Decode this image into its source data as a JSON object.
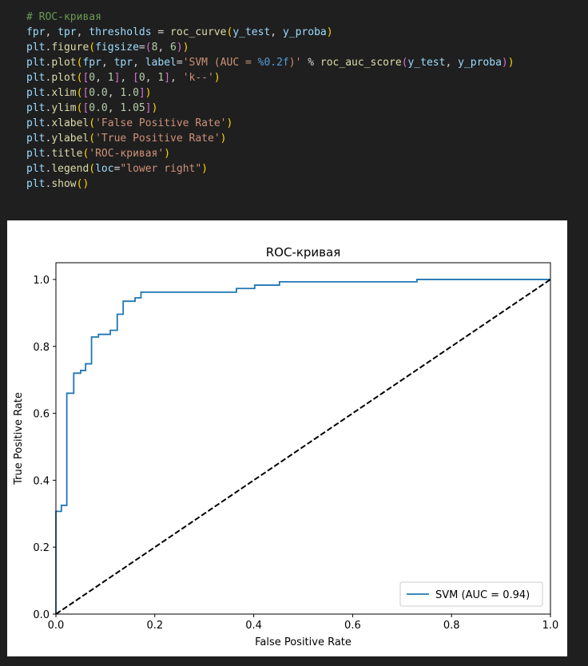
{
  "code_cell": {
    "lines": [
      [
        {
          "t": "# ROC-кривая",
          "c": "comment"
        }
      ],
      [
        {
          "t": "fpr",
          "c": "var"
        },
        {
          "t": ", ",
          "c": "op"
        },
        {
          "t": "tpr",
          "c": "var"
        },
        {
          "t": ", ",
          "c": "op"
        },
        {
          "t": "thresholds",
          "c": "var"
        },
        {
          "t": " = ",
          "c": "op"
        },
        {
          "t": "roc_curve",
          "c": "fn"
        },
        {
          "t": "(",
          "c": "br1"
        },
        {
          "t": "y_test",
          "c": "var"
        },
        {
          "t": ", ",
          "c": "op"
        },
        {
          "t": "y_proba",
          "c": "var"
        },
        {
          "t": ")",
          "c": "br1"
        }
      ],
      [
        {
          "t": "plt",
          "c": "var"
        },
        {
          "t": ".",
          "c": "op"
        },
        {
          "t": "figure",
          "c": "fn"
        },
        {
          "t": "(",
          "c": "br1"
        },
        {
          "t": "figsize",
          "c": "var"
        },
        {
          "t": "=",
          "c": "op"
        },
        {
          "t": "(",
          "c": "br2"
        },
        {
          "t": "8",
          "c": "num"
        },
        {
          "t": ", ",
          "c": "op"
        },
        {
          "t": "6",
          "c": "num"
        },
        {
          "t": ")",
          "c": "br2"
        },
        {
          "t": ")",
          "c": "br1"
        }
      ],
      [
        {
          "t": "plt",
          "c": "var"
        },
        {
          "t": ".",
          "c": "op"
        },
        {
          "t": "plot",
          "c": "fn"
        },
        {
          "t": "(",
          "c": "br1"
        },
        {
          "t": "fpr",
          "c": "var"
        },
        {
          "t": ", ",
          "c": "op"
        },
        {
          "t": "tpr",
          "c": "var"
        },
        {
          "t": ", ",
          "c": "op"
        },
        {
          "t": "label",
          "c": "var"
        },
        {
          "t": "=",
          "c": "op"
        },
        {
          "t": "'SVM (AUC = ",
          "c": "str"
        },
        {
          "t": "%0.2f",
          "c": "kw"
        },
        {
          "t": ")'",
          "c": "str"
        },
        {
          "t": " % ",
          "c": "op"
        },
        {
          "t": "roc_auc_score",
          "c": "fn"
        },
        {
          "t": "(",
          "c": "br2"
        },
        {
          "t": "y_test",
          "c": "var"
        },
        {
          "t": ", ",
          "c": "op"
        },
        {
          "t": "y_proba",
          "c": "var"
        },
        {
          "t": ")",
          "c": "br2"
        },
        {
          "t": ")",
          "c": "br1"
        }
      ],
      [
        {
          "t": "plt",
          "c": "var"
        },
        {
          "t": ".",
          "c": "op"
        },
        {
          "t": "plot",
          "c": "fn"
        },
        {
          "t": "(",
          "c": "br1"
        },
        {
          "t": "[",
          "c": "br2"
        },
        {
          "t": "0",
          "c": "num"
        },
        {
          "t": ", ",
          "c": "op"
        },
        {
          "t": "1",
          "c": "num"
        },
        {
          "t": "]",
          "c": "br2"
        },
        {
          "t": ", ",
          "c": "op"
        },
        {
          "t": "[",
          "c": "br2"
        },
        {
          "t": "0",
          "c": "num"
        },
        {
          "t": ", ",
          "c": "op"
        },
        {
          "t": "1",
          "c": "num"
        },
        {
          "t": "]",
          "c": "br2"
        },
        {
          "t": ", ",
          "c": "op"
        },
        {
          "t": "'k--'",
          "c": "str"
        },
        {
          "t": ")",
          "c": "br1"
        }
      ],
      [
        {
          "t": "plt",
          "c": "var"
        },
        {
          "t": ".",
          "c": "op"
        },
        {
          "t": "xlim",
          "c": "fn"
        },
        {
          "t": "(",
          "c": "br1"
        },
        {
          "t": "[",
          "c": "br2"
        },
        {
          "t": "0.0",
          "c": "num"
        },
        {
          "t": ", ",
          "c": "op"
        },
        {
          "t": "1.0",
          "c": "num"
        },
        {
          "t": "]",
          "c": "br2"
        },
        {
          "t": ")",
          "c": "br1"
        }
      ],
      [
        {
          "t": "plt",
          "c": "var"
        },
        {
          "t": ".",
          "c": "op"
        },
        {
          "t": "ylim",
          "c": "fn"
        },
        {
          "t": "(",
          "c": "br1"
        },
        {
          "t": "[",
          "c": "br2"
        },
        {
          "t": "0.0",
          "c": "num"
        },
        {
          "t": ", ",
          "c": "op"
        },
        {
          "t": "1.05",
          "c": "num"
        },
        {
          "t": "]",
          "c": "br2"
        },
        {
          "t": ")",
          "c": "br1"
        }
      ],
      [
        {
          "t": "plt",
          "c": "var"
        },
        {
          "t": ".",
          "c": "op"
        },
        {
          "t": "xlabel",
          "c": "fn"
        },
        {
          "t": "(",
          "c": "br1"
        },
        {
          "t": "'False Positive Rate'",
          "c": "str"
        },
        {
          "t": ")",
          "c": "br1"
        }
      ],
      [
        {
          "t": "plt",
          "c": "var"
        },
        {
          "t": ".",
          "c": "op"
        },
        {
          "t": "ylabel",
          "c": "fn"
        },
        {
          "t": "(",
          "c": "br1"
        },
        {
          "t": "'True Positive Rate'",
          "c": "str"
        },
        {
          "t": ")",
          "c": "br1"
        }
      ],
      [
        {
          "t": "plt",
          "c": "var"
        },
        {
          "t": ".",
          "c": "op"
        },
        {
          "t": "title",
          "c": "fn"
        },
        {
          "t": "(",
          "c": "br1"
        },
        {
          "t": "'ROC-кривая'",
          "c": "str"
        },
        {
          "t": ")",
          "c": "br1"
        }
      ],
      [
        {
          "t": "plt",
          "c": "var"
        },
        {
          "t": ".",
          "c": "op"
        },
        {
          "t": "legend",
          "c": "fn"
        },
        {
          "t": "(",
          "c": "br1"
        },
        {
          "t": "loc",
          "c": "var"
        },
        {
          "t": "=",
          "c": "op"
        },
        {
          "t": "\"lower right\"",
          "c": "str"
        },
        {
          "t": ")",
          "c": "br1"
        }
      ],
      [
        {
          "t": "plt",
          "c": "var"
        },
        {
          "t": ".",
          "c": "op"
        },
        {
          "t": "show",
          "c": "fn"
        },
        {
          "t": "()",
          "c": "br1"
        }
      ]
    ]
  },
  "chart_data": {
    "type": "line",
    "title": "ROC-кривая",
    "xlabel": "False Positive Rate",
    "ylabel": "True Positive Rate",
    "xlim": [
      0.0,
      1.0
    ],
    "ylim": [
      0.0,
      1.05
    ],
    "xticks": [
      "0.0",
      "0.2",
      "0.4",
      "0.6",
      "0.8",
      "1.0"
    ],
    "yticks": [
      "0.0",
      "0.2",
      "0.4",
      "0.6",
      "0.8",
      "1.0"
    ],
    "legend_position": "lower right",
    "grid": false,
    "series": [
      {
        "name": "SVM (AUC = 0.94)",
        "color": "#1f77b4",
        "style": "solid",
        "x": [
          0.0,
          0.0,
          0.011,
          0.011,
          0.022,
          0.022,
          0.036,
          0.036,
          0.05,
          0.05,
          0.06,
          0.06,
          0.072,
          0.072,
          0.086,
          0.086,
          0.11,
          0.11,
          0.124,
          0.124,
          0.136,
          0.136,
          0.16,
          0.16,
          0.172,
          0.172,
          0.365,
          0.365,
          0.402,
          0.402,
          0.452,
          0.452,
          0.73,
          0.73,
          1.0
        ],
        "y": [
          0.0,
          0.307,
          0.307,
          0.325,
          0.325,
          0.66,
          0.66,
          0.72,
          0.72,
          0.728,
          0.728,
          0.748,
          0.748,
          0.828,
          0.828,
          0.836,
          0.836,
          0.848,
          0.848,
          0.896,
          0.896,
          0.935,
          0.935,
          0.945,
          0.945,
          0.962,
          0.962,
          0.973,
          0.973,
          0.983,
          0.983,
          0.993,
          0.993,
          1.0,
          1.0
        ]
      },
      {
        "name": "",
        "color": "#000000",
        "style": "dashed",
        "x": [
          0.0,
          1.0
        ],
        "y": [
          0.0,
          1.0
        ]
      }
    ]
  }
}
